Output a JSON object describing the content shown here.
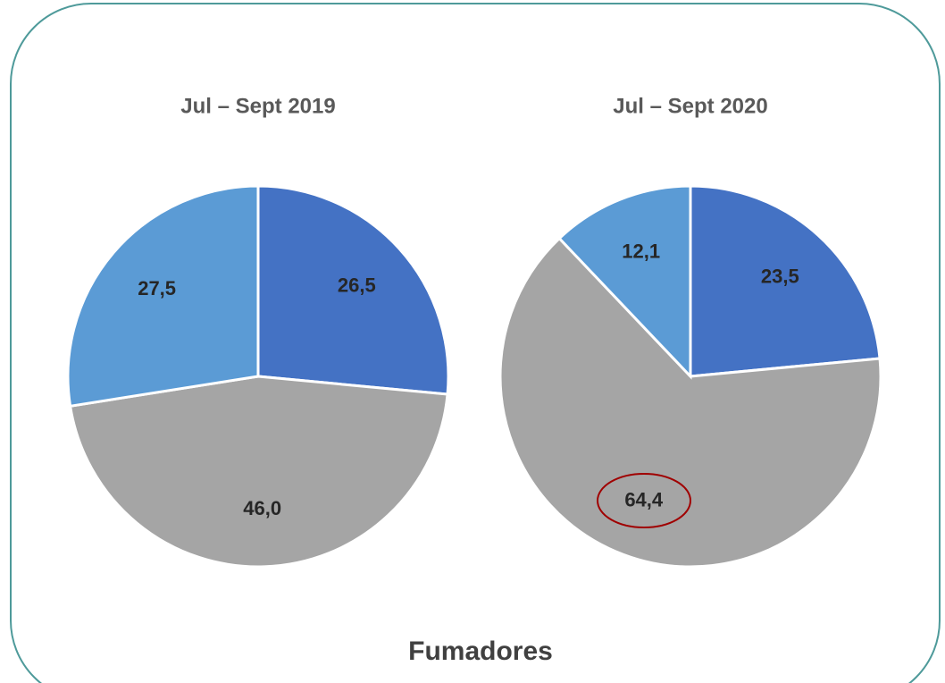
{
  "chart_data": [
    {
      "type": "pie",
      "title": "Jul – Sept 2019",
      "series": [
        {
          "values": [
            26.5,
            46.0,
            27.5
          ],
          "value_labels": [
            "26,5",
            "46,0",
            "27,5"
          ],
          "colors": [
            "#4472c4",
            "#a5a5a5",
            "#5b9bd5"
          ]
        }
      ]
    },
    {
      "type": "pie",
      "title": "Jul – Sept 2020",
      "series": [
        {
          "values": [
            23.5,
            64.4,
            12.1
          ],
          "value_labels": [
            "23,5",
            "64,4",
            "12,1"
          ],
          "colors": [
            "#4472c4",
            "#a5a5a5",
            "#5b9bd5"
          ]
        }
      ]
    }
  ],
  "caption": "Fumadores"
}
